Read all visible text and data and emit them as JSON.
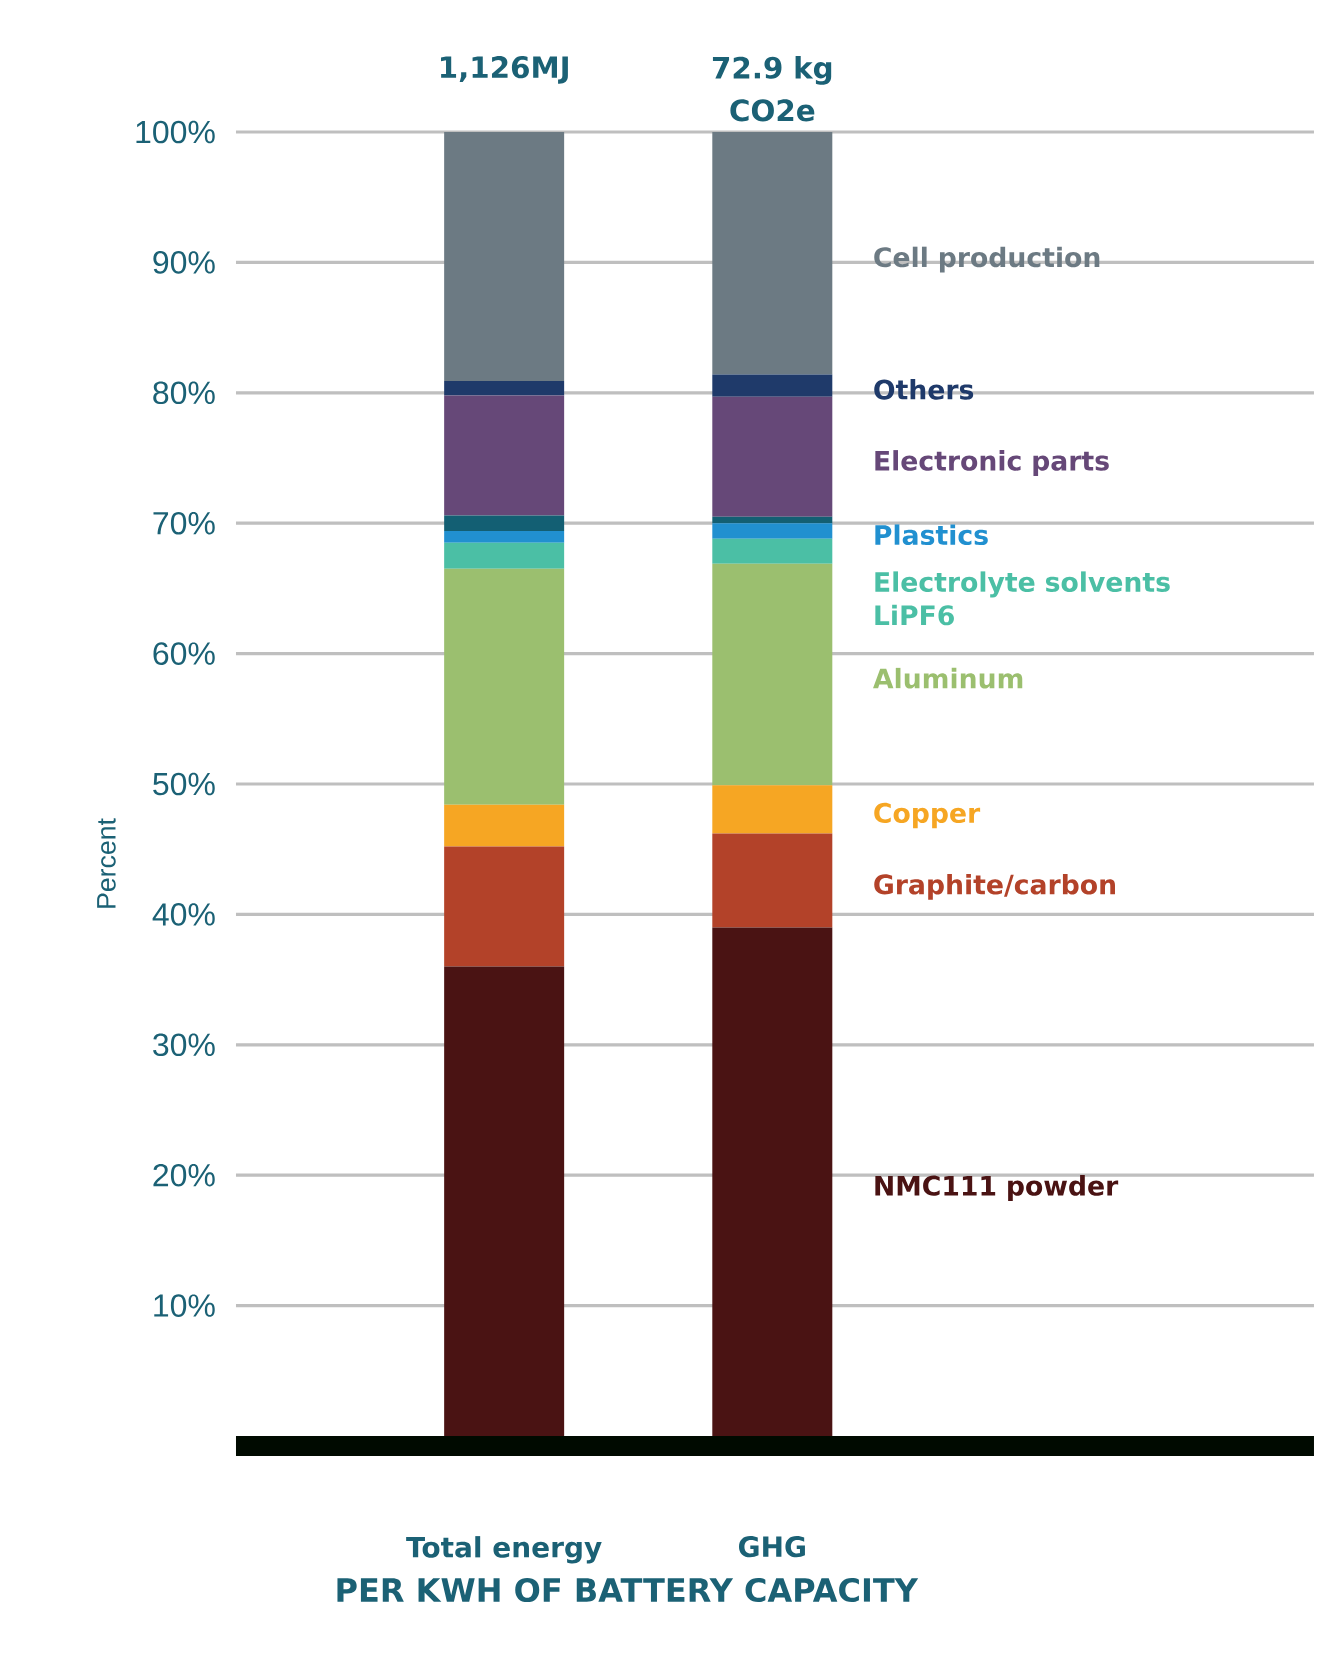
{
  "chart_data": {
    "type": "bar",
    "stacked": true,
    "categories": [
      "Total energy",
      "GHG"
    ],
    "annotations": [
      {
        "text": "1,126MJ",
        "x": "Total energy",
        "y": 100
      },
      {
        "text": "72.9 kg CO2e",
        "x": "GHG",
        "y": 100
      }
    ],
    "xlabel": "PER KWH OF BATTERY CAPACITY",
    "ylabel": "Percent",
    "ylim": [
      0,
      100
    ],
    "yticks": [
      {
        "value": 10,
        "label": "10%"
      },
      {
        "value": 20,
        "label": "20%"
      },
      {
        "value": 30,
        "label": "30%"
      },
      {
        "value": 40,
        "label": "40%"
      },
      {
        "value": 50,
        "label": "50%"
      },
      {
        "value": 60,
        "label": "60%"
      },
      {
        "value": 70,
        "label": "70%"
      },
      {
        "value": 80,
        "label": "80%"
      },
      {
        "value": 90,
        "label": "90%"
      },
      {
        "value": 100,
        "label": "100%"
      }
    ],
    "grid": "y",
    "series": [
      {
        "name": "NMC111 powder",
        "color": "#4a1313",
        "values": [
          36.0,
          39.0
        ]
      },
      {
        "name": "Graphite/carbon",
        "color": "#b34229",
        "values": [
          9.2,
          7.2
        ]
      },
      {
        "name": "Copper",
        "color": "#f6a623",
        "values": [
          3.2,
          3.7
        ]
      },
      {
        "name": "Aluminum",
        "color": "#9bbf6f",
        "values": [
          18.1,
          17.0
        ]
      },
      {
        "name": "Electrolyte solvents LiPF6",
        "color": "#4bbfa5",
        "values": [
          2.0,
          1.9
        ]
      },
      {
        "name": "Plastics",
        "color": "#2190d0",
        "values": [
          0.9,
          1.2
        ]
      },
      {
        "color": "#135f73",
        "values": [
          1.2,
          0.5
        ]
      },
      {
        "name": "Electronic parts",
        "color": "#664878",
        "values": [
          9.2,
          9.2
        ]
      },
      {
        "name": "Others",
        "color": "#1f3a6a",
        "values": [
          1.1,
          1.7
        ]
      },
      {
        "name": "Cell production",
        "color": "#6c7a83",
        "values": [
          19.1,
          18.6
        ]
      }
    ]
  }
}
